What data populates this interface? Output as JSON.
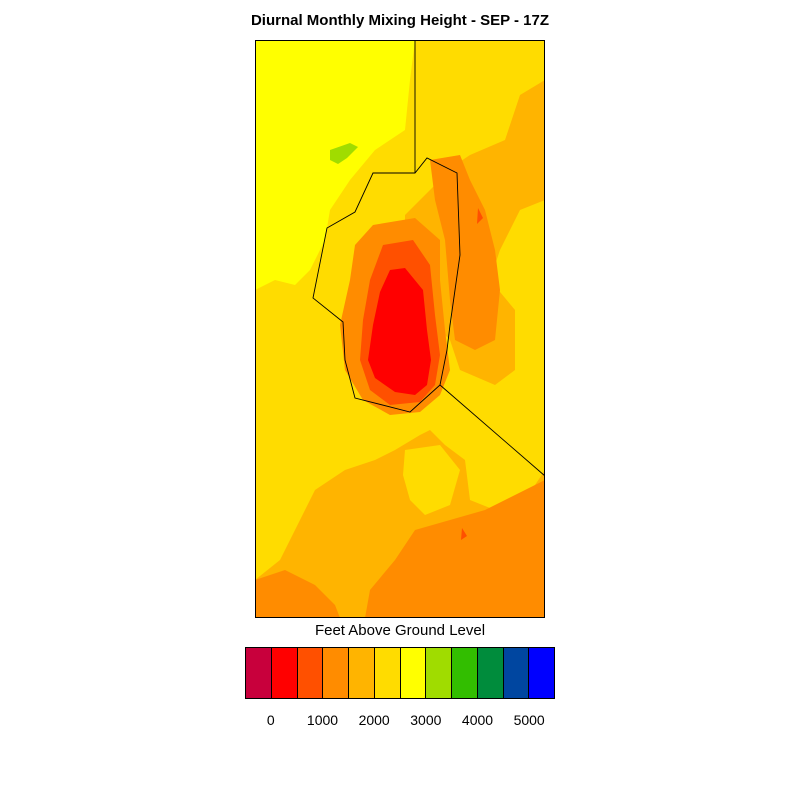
{
  "map": {
    "title": "Diurnal Monthly Mixing Height - SEP - 17Z"
  },
  "legend": {
    "title": "Feet Above Ground Level",
    "colors": [
      "#c8003c",
      "#ff0000",
      "#ff5000",
      "#ff8c00",
      "#ffb400",
      "#ffdc00",
      "#ffff00",
      "#a0dc00",
      "#32be00",
      "#008c3c",
      "#0046a0",
      "#0000ff"
    ],
    "tick_labels": [
      "0",
      "1000",
      "2000",
      "3000",
      "4000",
      "5000"
    ]
  },
  "field_colors": {
    "orange": "#ffb400",
    "gold": "#ffdc00",
    "yellow": "#ffff00",
    "lime": "#a0dc00",
    "dark_orange": "#ff8c00",
    "red_orange": "#ff5000",
    "red": "#ff0000"
  }
}
